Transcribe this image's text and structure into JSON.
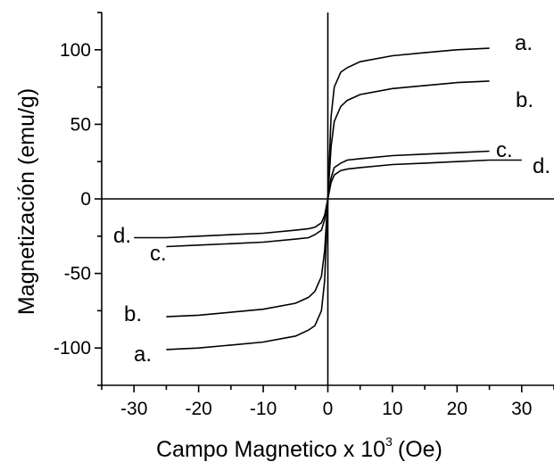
{
  "chart_data": {
    "type": "line",
    "title": "",
    "xlabel": "Campo Magnetico x 10",
    "xlabel_sup": "3",
    "xlabel_unit": "(Oe)",
    "ylabel": "Magnetización (emu/g)",
    "xlim": [
      -35,
      35
    ],
    "ylim": [
      -125,
      125
    ],
    "x_ticks": [
      -30,
      -20,
      -10,
      0,
      10,
      20,
      30
    ],
    "y_ticks": [
      -100,
      -50,
      0,
      50,
      100
    ],
    "x_tick_labels": [
      "-30",
      "-20",
      "-10",
      "0",
      "10",
      "20",
      "30"
    ],
    "y_tick_labels": [
      "-100",
      "-50",
      "0",
      "50",
      "100"
    ],
    "grid": false,
    "zero_lines": true,
    "series": [
      {
        "name": "a.",
        "x": [
          -25,
          -20,
          -15,
          -10,
          -5,
          -3,
          -2,
          -1,
          -0.5,
          0,
          0.5,
          1,
          2,
          3,
          5,
          10,
          15,
          20,
          25
        ],
        "y": [
          -101,
          -100,
          -98,
          -96,
          -92,
          -88,
          -85,
          -75,
          -55,
          0,
          55,
          75,
          85,
          88,
          92,
          96,
          98,
          100,
          101
        ]
      },
      {
        "name": "b.",
        "x": [
          -25,
          -20,
          -15,
          -10,
          -5,
          -3,
          -2,
          -1,
          -0.5,
          0,
          0.5,
          1,
          2,
          3,
          5,
          10,
          15,
          20,
          25
        ],
        "y": [
          -79,
          -78,
          -76,
          -74,
          -70,
          -66,
          -62,
          -52,
          -35,
          0,
          35,
          52,
          62,
          66,
          70,
          74,
          76,
          78,
          79
        ]
      },
      {
        "name": "c.",
        "x": [
          -25,
          -20,
          -15,
          -10,
          -5,
          -3,
          -2,
          -1,
          -0.5,
          0,
          0.5,
          1,
          2,
          3,
          5,
          10,
          15,
          20,
          25
        ],
        "y": [
          -32,
          -31,
          -30,
          -29,
          -27,
          -26,
          -24,
          -21,
          -14,
          0,
          14,
          21,
          24,
          26,
          27,
          29,
          30,
          31,
          32
        ]
      },
      {
        "name": "d.",
        "x": [
          -30,
          -25,
          -20,
          -15,
          -10,
          -5,
          -3,
          -2,
          -1,
          -0.5,
          0,
          0.5,
          1,
          2,
          3,
          5,
          10,
          15,
          20,
          25,
          30
        ],
        "y": [
          -26,
          -26,
          -25,
          -24,
          -23,
          -21,
          -20,
          -19,
          -16,
          -11,
          0,
          11,
          16,
          19,
          20,
          21,
          23,
          24,
          25,
          26,
          26
        ]
      }
    ]
  }
}
